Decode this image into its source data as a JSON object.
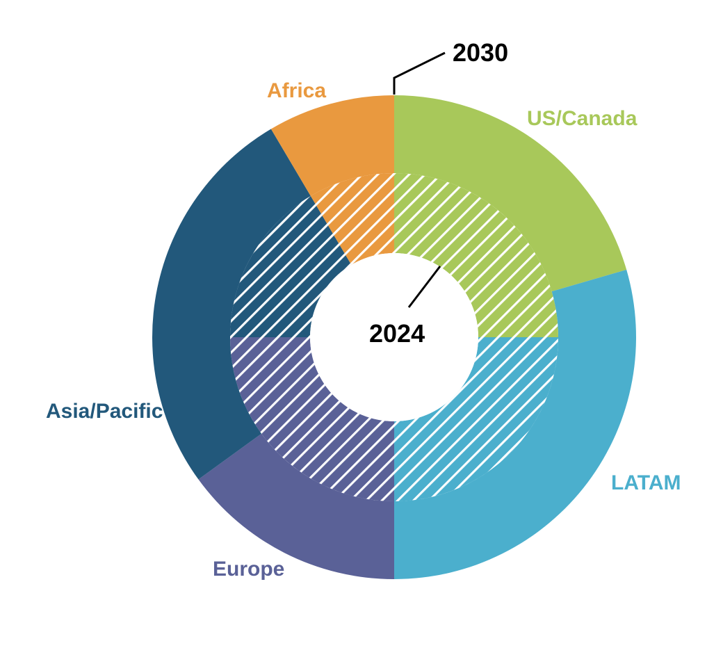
{
  "chart_data": {
    "type": "pie",
    "variant": "nested-donut",
    "categories": [
      "US/Canada",
      "LATAM",
      "Europe",
      "Asia/Pacific",
      "Africa"
    ],
    "colors": {
      "US/Canada": "#a8c85a",
      "LATAM": "#4bafcd",
      "Europe": "#5a6197",
      "Asia/Pacific": "#22587b",
      "Africa": "#e9993f"
    },
    "series": [
      {
        "name": "2030",
        "ring": "outer",
        "values": [
          20.5,
          29.5,
          15,
          26.5,
          8.5
        ]
      },
      {
        "name": "2024",
        "ring": "inner",
        "values": [
          25,
          25,
          25,
          16.5,
          8.5
        ]
      }
    ],
    "labels": {
      "outer_series": "2030",
      "inner_series": "2024"
    },
    "inner_ring_pattern": "diagonal-hatch"
  }
}
